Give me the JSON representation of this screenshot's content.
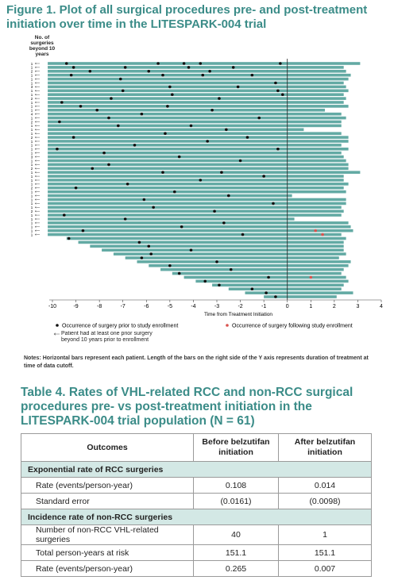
{
  "chart_data": {
    "type": "swimmer",
    "title": "Figure 1. Plot of all surgical procedures pre- and post-treatment initiation over time in the LITESPARK-004 trial",
    "y_label": "No. of surgeries beyond 10 years",
    "x_label": "Time from Treatment Initiation",
    "xlim": [
      -10,
      4
    ],
    "xticks": [
      -10,
      -9,
      -8,
      -7,
      -6,
      -5,
      -4,
      -3,
      -2,
      -1,
      0,
      1,
      2,
      3,
      4
    ],
    "bar_color": "#63aaa4",
    "row_labels": [
      "1",
      "1",
      "2",
      "1",
      "1",
      "1",
      "3",
      "1",
      "1",
      "2",
      "1",
      "1",
      "1",
      "4",
      "1",
      "2",
      "1",
      "1",
      "1",
      "2",
      "1",
      "1",
      "1",
      "1",
      "3",
      "1",
      "1",
      "2",
      "1",
      "1",
      "1",
      "1",
      "2",
      "1",
      "1",
      "1",
      "1",
      "1",
      "2",
      "1",
      "1",
      "1",
      "1",
      "1",
      "1",
      null,
      null,
      null,
      null,
      null,
      null,
      null,
      null,
      null,
      null,
      null,
      null,
      null,
      null,
      null,
      null
    ],
    "starts": [
      -10.2,
      -10.2,
      -10.2,
      -10.2,
      -10.2,
      -10.2,
      -10.2,
      -10.2,
      -10.2,
      -10.2,
      -10.2,
      -10.2,
      -10.2,
      -10.2,
      -10.2,
      -10.2,
      -10.2,
      -10.2,
      -10.2,
      -10.2,
      -10.2,
      -10.2,
      -10.2,
      -10.2,
      -10.2,
      -10.2,
      -10.2,
      -10.2,
      -10.2,
      -10.2,
      -10.2,
      -10.2,
      -10.2,
      -10.2,
      -10.2,
      -10.2,
      -10.2,
      -10.2,
      -10.2,
      -10.2,
      -10.2,
      -10.2,
      -10.2,
      -10.2,
      -10.2,
      -9.4,
      -8.9,
      -8.4,
      -7.9,
      -7.4,
      -6.9,
      -6.4,
      -5.9,
      -5.4,
      -4.9,
      -4.4,
      -3.9,
      -3.2,
      -2.5,
      -1.8,
      -1.0
    ],
    "ends": [
      3.1,
      2.4,
      2.5,
      2.7,
      2.6,
      2.4,
      2.5,
      2.6,
      2.4,
      2.5,
      2.4,
      2.6,
      1.6,
      2.3,
      2.5,
      2.3,
      2.3,
      0.7,
      2.3,
      2.6,
      2.6,
      2.3,
      2.6,
      2.3,
      2.4,
      2.5,
      2.6,
      2.6,
      3.1,
      2.4,
      2.4,
      2.6,
      2.4,
      2.5,
      0.2,
      2.5,
      2.5,
      2.3,
      2.4,
      2.3,
      0.3,
      2.6,
      2.7,
      2.8,
      2.3,
      2.5,
      2.4,
      2.4,
      2.4,
      2.5,
      2.2,
      2.7,
      2.6,
      2.4,
      2.3,
      2.5,
      2.6,
      2.4,
      2.3,
      2.8,
      2.1
    ],
    "pre_events": {
      "name": "Occurrence of surgery prior to study enrollment",
      "color": "#111111",
      "rows": [
        0,
        0,
        0,
        0,
        0,
        1,
        1,
        1,
        1,
        2,
        2,
        2,
        3,
        3,
        3,
        3,
        4,
        5,
        6,
        6,
        7,
        7,
        8,
        8,
        9,
        9,
        10,
        11,
        11,
        12,
        12,
        13,
        14,
        14,
        15,
        16,
        16,
        17,
        18,
        19,
        19,
        20,
        21,
        22,
        22,
        23,
        24,
        25,
        26,
        27,
        28,
        28,
        29,
        30,
        31,
        32,
        33,
        34,
        35,
        36,
        37,
        38,
        39,
        40,
        41,
        42,
        43,
        44,
        45,
        46,
        47,
        48,
        49,
        50,
        51,
        52,
        53,
        54,
        55,
        56,
        57,
        58,
        59,
        60
      ],
      "x": [
        -9.4,
        -5.5,
        -4.4,
        -3.7,
        -0.3,
        -9.1,
        -6.9,
        -4.2,
        -2.3,
        -8.4,
        -5.9,
        -3.3,
        -9.2,
        -5.3,
        -3.6,
        -1.5,
        -7.1,
        -0.5,
        -5.0,
        -2.1,
        -7.0,
        -0.4,
        -4.9,
        -0.2,
        -7.5,
        -2.9,
        -9.6,
        -8.8,
        -5.1,
        -8.1,
        -3.2,
        -6.2,
        -7.6,
        -1.2,
        -9.7,
        -7.2,
        -4.1,
        -2.6,
        -5.2,
        -9.1,
        -1.7,
        -3.4,
        -6.5,
        -9.8,
        -0.4,
        -7.8,
        -4.6,
        -2.0,
        -7.6,
        -8.3,
        -5.3,
        -2.8,
        -1.0,
        -3.7,
        -6.8,
        -9.0,
        -4.8,
        -2.5,
        -6.1,
        -0.6,
        -5.7,
        -3.1,
        -9.5,
        -6.9,
        -2.7,
        -4.5,
        -8.7,
        -1.9,
        -9.3,
        -6.3,
        -5.9,
        -4.1,
        -5.8,
        -6.2,
        -3.0,
        -5.0,
        -2.4,
        -4.6,
        -0.8,
        -3.5,
        -2.9,
        -1.5,
        -0.9,
        -0.5
      ]
    },
    "post_events": {
      "name": "Occurrence of surgery following study enrollment",
      "color": "#d9534f",
      "rows": [
        43,
        44,
        55
      ],
      "x": [
        1.2,
        1.5,
        1.0
      ]
    },
    "prior_marker_label": "Patient had at least one prior surgery beyond 10 years prior to enrollment"
  },
  "notes": "Notes: Horizontal bars represent each patient. Length of the bars on the right side of the Y axis represents duration of treatment at time of data cutoff.",
  "table": {
    "title": "Table 4. Rates of VHL-related RCC and non-RCC surgical procedures pre- vs post-treatment initiation in the LITESPARK-004 trial population (N = 61)",
    "header": [
      "Outcomes",
      "Before belzutifan initiation",
      "After belzutifan initiation"
    ],
    "rows": [
      [
        "Exponential rate of RCC surgeries"
      ],
      [
        "Rate (events/person-year)",
        "0.108",
        "0.014"
      ],
      [
        "Standard error",
        "(0.0161)",
        "(0.0098)"
      ],
      [
        "Incidence rate of non-RCC surgeries"
      ],
      [
        "Number of non-RCC VHL-related surgeries",
        "40",
        "1"
      ],
      [
        "Total person-years at risk",
        "151.1",
        "151.1"
      ],
      [
        "Rate (events/person-year)",
        "0.265",
        "0.007"
      ]
    ]
  }
}
